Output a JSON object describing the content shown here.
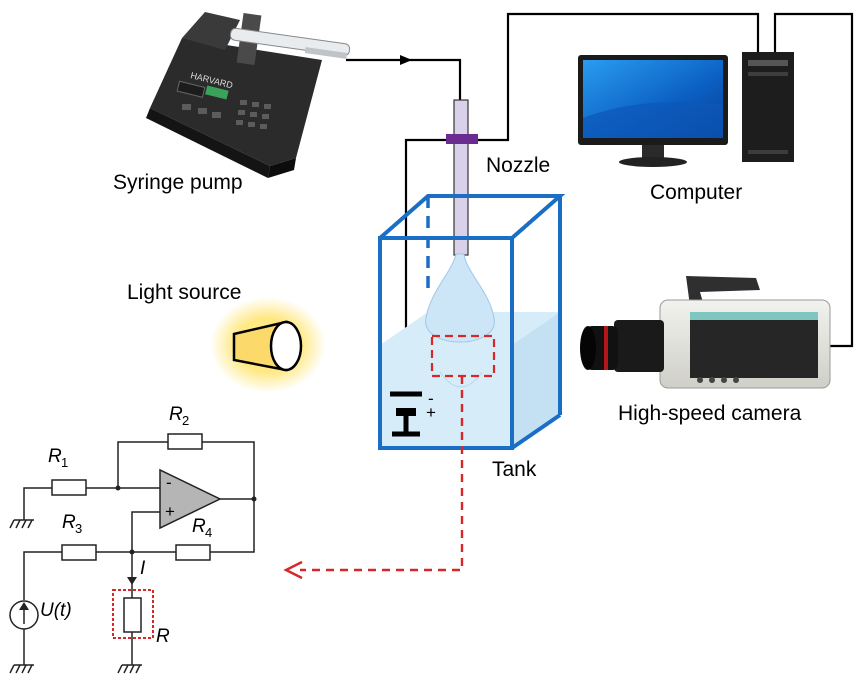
{
  "labels": {
    "syringe_pump": "Syringe pump",
    "nozzle": "Nozzle",
    "computer": "Computer",
    "light_source": "Light source",
    "tank": "Tank",
    "camera": "High-speed camera",
    "pump_brand": "HARVARD"
  },
  "circuit": {
    "r1": "R",
    "r1_sub": "1",
    "r2": "R",
    "r2_sub": "2",
    "r3": "R",
    "r3_sub": "3",
    "r4": "R",
    "r4_sub": "4",
    "current": "I",
    "source": "U(t)",
    "load": "R",
    "minus": "-",
    "plus": "+"
  },
  "battery": {
    "minus": "-",
    "plus": "+"
  },
  "colors": {
    "tank": "#1a6fc4",
    "water": "#d6ecf8",
    "droplet": "#cde6f7",
    "nozzle_band": "#6a2c91",
    "highlight": "#d62828",
    "light_glow": "#ffe46b"
  }
}
